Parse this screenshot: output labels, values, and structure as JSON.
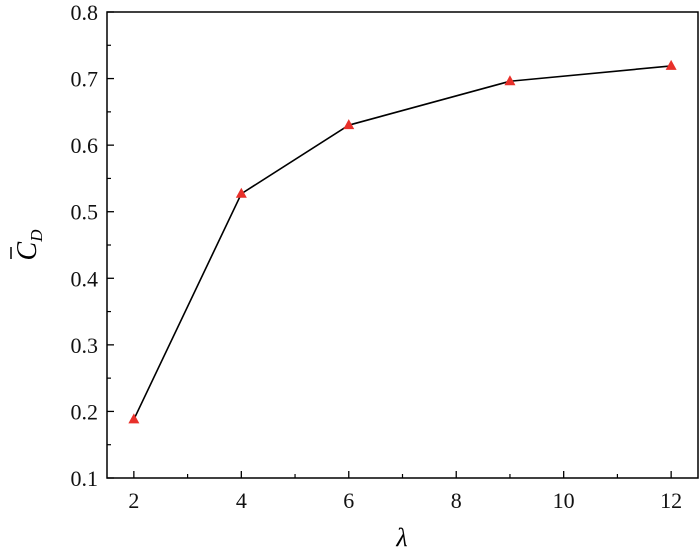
{
  "chart_data": {
    "type": "line",
    "title": "",
    "xlabel": "λ",
    "ylabel": "C̄_D",
    "ylabel_main": "C",
    "ylabel_sub": "D",
    "xlim": [
      1.5,
      12.5
    ],
    "ylim": [
      0.1,
      0.8
    ],
    "x_ticks": [
      "2",
      "4",
      "6",
      "8",
      "10",
      "12"
    ],
    "y_ticks": [
      "0.1",
      "0.2",
      "0.3",
      "0.4",
      "0.5",
      "0.6",
      "0.7",
      "0.8"
    ],
    "grid": false,
    "series": [
      {
        "x": [
          2,
          4,
          6,
          9,
          12
        ],
        "y": [
          0.188,
          0.527,
          0.63,
          0.696,
          0.719
        ],
        "line_color": "#000000",
        "marker": "triangle",
        "marker_color": "#e8302a"
      }
    ]
  }
}
